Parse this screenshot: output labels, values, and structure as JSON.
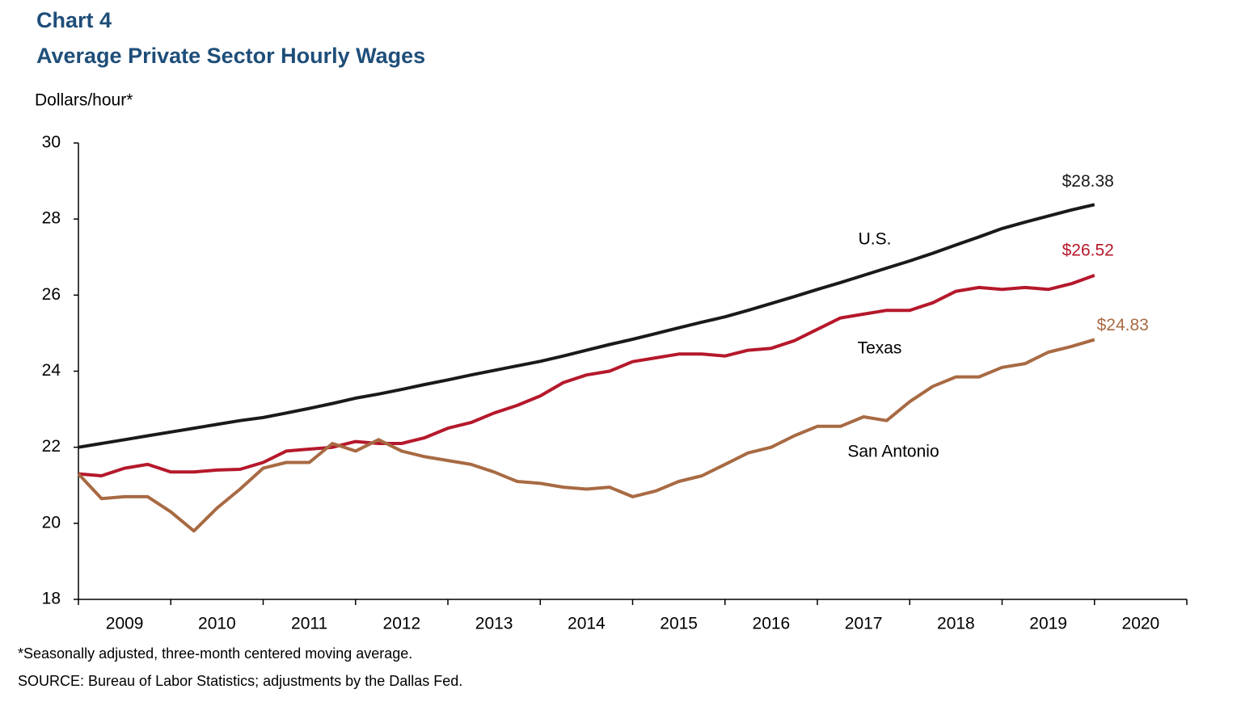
{
  "chart_data": {
    "type": "line",
    "title": "Chart 4",
    "subtitle": "Average Private Sector Hourly Wages",
    "y_label": "Dollars/hour*",
    "notes": [
      "*Seasonally adjusted, three-month centered moving average.",
      "SOURCE: Bureau of Labor Statistics; adjustments by the Dallas Fed."
    ],
    "x": [
      2009,
      2009.25,
      2009.5,
      2009.75,
      2010,
      2010.25,
      2010.5,
      2010.75,
      2011,
      2011.25,
      2011.5,
      2011.75,
      2012,
      2012.25,
      2012.5,
      2012.75,
      2013,
      2013.25,
      2013.5,
      2013.75,
      2014,
      2014.25,
      2014.5,
      2014.75,
      2015,
      2015.25,
      2015.5,
      2015.75,
      2016,
      2016.25,
      2016.5,
      2016.75,
      2017,
      2017.25,
      2017.5,
      2017.75,
      2018,
      2018.25,
      2018.5,
      2018.75,
      2019,
      2019.25,
      2019.5,
      2019.75,
      2020
    ],
    "xlim": [
      2009,
      2021
    ],
    "xticks": [
      2009,
      2010,
      2011,
      2012,
      2013,
      2014,
      2015,
      2016,
      2017,
      2018,
      2019,
      2020,
      2021
    ],
    "year_labels": [
      "2009",
      "2010",
      "2011",
      "2012",
      "2013",
      "2014",
      "2015",
      "2016",
      "2017",
      "2018",
      "2019",
      "2020"
    ],
    "ylim": [
      18,
      30
    ],
    "yticks": [
      18,
      20,
      22,
      24,
      26,
      28,
      30
    ],
    "grid": false,
    "series": [
      {
        "name": "U.S.",
        "color": "#1a1a1a",
        "values": [
          22.0,
          22.1,
          22.2,
          22.3,
          22.4,
          22.5,
          22.6,
          22.7,
          22.78,
          22.9,
          23.02,
          23.15,
          23.29,
          23.4,
          23.52,
          23.65,
          23.77,
          23.9,
          24.02,
          24.14,
          24.26,
          24.4,
          24.55,
          24.7,
          24.84,
          24.99,
          25.14,
          25.29,
          25.43,
          25.6,
          25.78,
          25.96,
          26.15,
          26.33,
          26.52,
          26.71,
          26.9,
          27.1,
          27.32,
          27.53,
          27.75,
          27.92,
          28.08,
          28.24,
          28.38
        ],
        "value_labels": [
          null,
          null,
          null,
          null,
          null,
          null,
          null,
          null,
          null,
          null,
          null,
          null,
          null,
          null,
          null,
          null,
          null,
          null,
          null,
          null,
          null,
          null,
          null,
          null,
          null,
          null,
          null,
          null,
          null,
          null,
          null,
          null,
          null,
          null,
          null,
          null,
          null,
          null,
          null,
          null,
          null,
          null,
          null,
          null,
          "$28.38"
        ]
      },
      {
        "name": "Texas",
        "color": "#b5182b",
        "values": [
          21.3,
          21.25,
          21.45,
          21.55,
          21.35,
          21.35,
          21.4,
          21.42,
          21.6,
          21.9,
          21.95,
          22.0,
          22.15,
          22.1,
          22.1,
          22.25,
          22.5,
          22.65,
          22.9,
          23.1,
          23.35,
          23.7,
          23.9,
          24.0,
          24.25,
          24.35,
          24.45,
          24.45,
          24.4,
          24.55,
          24.6,
          24.8,
          25.1,
          25.4,
          25.5,
          25.6,
          25.6,
          25.8,
          26.1,
          26.2,
          26.15,
          26.2,
          26.15,
          26.3,
          26.52
        ],
        "value_labels": [
          null,
          null,
          null,
          null,
          null,
          null,
          null,
          null,
          null,
          null,
          null,
          null,
          null,
          null,
          null,
          null,
          null,
          null,
          null,
          null,
          null,
          null,
          null,
          null,
          null,
          null,
          null,
          null,
          null,
          null,
          null,
          null,
          null,
          null,
          null,
          null,
          null,
          null,
          null,
          null,
          null,
          null,
          null,
          null,
          "$26.52"
        ]
      },
      {
        "name": "San Antonio",
        "color": "#a86a43",
        "values": [
          21.3,
          20.65,
          20.7,
          20.7,
          20.3,
          19.8,
          20.4,
          20.9,
          21.45,
          21.6,
          21.6,
          22.1,
          21.9,
          22.2,
          21.9,
          21.75,
          21.65,
          21.55,
          21.35,
          21.1,
          21.05,
          20.95,
          20.9,
          20.95,
          20.7,
          20.85,
          21.1,
          21.25,
          21.55,
          21.85,
          22.0,
          22.3,
          22.55,
          22.55,
          22.8,
          22.7,
          23.2,
          23.6,
          23.85,
          23.85,
          24.1,
          24.2,
          24.5,
          24.65,
          24.83
        ],
        "value_labels": [
          null,
          null,
          null,
          null,
          null,
          null,
          null,
          null,
          null,
          null,
          null,
          null,
          null,
          null,
          null,
          null,
          null,
          null,
          null,
          null,
          null,
          null,
          null,
          null,
          null,
          null,
          null,
          null,
          null,
          null,
          null,
          null,
          null,
          null,
          null,
          null,
          null,
          null,
          null,
          null,
          null,
          null,
          null,
          null,
          "$24.83"
        ]
      }
    ]
  }
}
